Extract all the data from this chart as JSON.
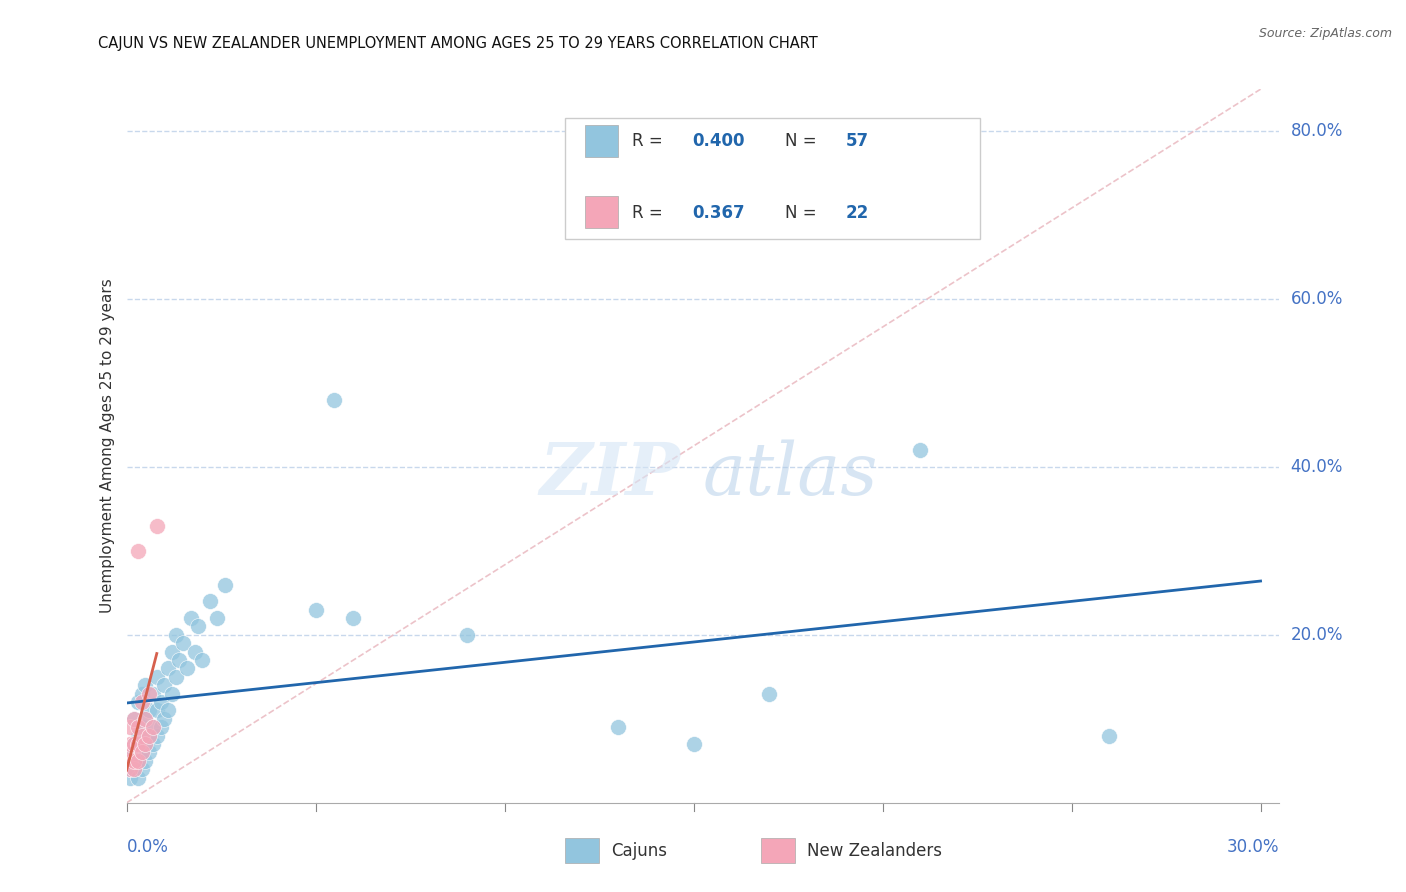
{
  "title": "CAJUN VS NEW ZEALANDER UNEMPLOYMENT AMONG AGES 25 TO 29 YEARS CORRELATION CHART",
  "source": "Source: ZipAtlas.com",
  "ylabel": "Unemployment Among Ages 25 to 29 years",
  "ytick_labels": [
    "20.0%",
    "40.0%",
    "60.0%",
    "80.0%"
  ],
  "ytick_values": [
    0.2,
    0.4,
    0.6,
    0.8
  ],
  "xmin": 0.0,
  "xmax": 0.3,
  "ymin": 0.0,
  "ymax": 0.85,
  "cajun_R": 0.4,
  "cajun_N": 57,
  "nz_R": 0.367,
  "nz_N": 22,
  "cajun_color": "#92c5de",
  "cajun_line_color": "#2166ac",
  "nz_color": "#f4a6b8",
  "nz_line_color": "#d6604d",
  "watermark_zip": "ZIP",
  "watermark_atlas": "atlas",
  "title_fontsize": 10.5,
  "axis_label_color": "#4472C4",
  "legend_label_cajun": "Cajuns",
  "legend_label_nz": "New Zealanders",
  "cajun_x": [
    0.001,
    0.001,
    0.001,
    0.002,
    0.002,
    0.002,
    0.002,
    0.003,
    0.003,
    0.003,
    0.003,
    0.004,
    0.004,
    0.004,
    0.004,
    0.005,
    0.005,
    0.005,
    0.005,
    0.006,
    0.006,
    0.006,
    0.007,
    0.007,
    0.007,
    0.008,
    0.008,
    0.008,
    0.009,
    0.009,
    0.01,
    0.01,
    0.011,
    0.011,
    0.012,
    0.012,
    0.013,
    0.013,
    0.014,
    0.015,
    0.016,
    0.017,
    0.018,
    0.019,
    0.02,
    0.022,
    0.024,
    0.026,
    0.05,
    0.06,
    0.09,
    0.13,
    0.15,
    0.17,
    0.21,
    0.26,
    0.055
  ],
  "cajun_y": [
    0.03,
    0.04,
    0.06,
    0.04,
    0.05,
    0.07,
    0.1,
    0.03,
    0.05,
    0.08,
    0.12,
    0.04,
    0.06,
    0.09,
    0.13,
    0.05,
    0.07,
    0.1,
    0.14,
    0.06,
    0.08,
    0.11,
    0.07,
    0.09,
    0.13,
    0.08,
    0.11,
    0.15,
    0.09,
    0.12,
    0.1,
    0.14,
    0.11,
    0.16,
    0.13,
    0.18,
    0.15,
    0.2,
    0.17,
    0.19,
    0.16,
    0.22,
    0.18,
    0.21,
    0.17,
    0.24,
    0.22,
    0.26,
    0.23,
    0.22,
    0.2,
    0.09,
    0.07,
    0.13,
    0.42,
    0.08,
    0.48
  ],
  "nz_x": [
    0.001,
    0.001,
    0.001,
    0.001,
    0.001,
    0.002,
    0.002,
    0.002,
    0.002,
    0.003,
    0.003,
    0.003,
    0.003,
    0.004,
    0.004,
    0.004,
    0.005,
    0.005,
    0.006,
    0.006,
    0.007,
    0.008
  ],
  "nz_y": [
    0.04,
    0.05,
    0.06,
    0.07,
    0.09,
    0.04,
    0.05,
    0.07,
    0.1,
    0.05,
    0.07,
    0.09,
    0.3,
    0.06,
    0.08,
    0.12,
    0.07,
    0.1,
    0.08,
    0.13,
    0.09,
    0.33
  ]
}
